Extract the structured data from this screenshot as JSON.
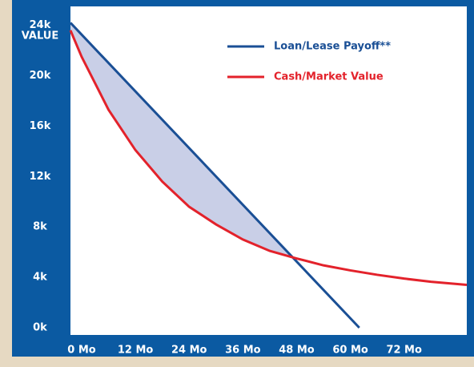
{
  "chart_data": {
    "type": "line",
    "y_label": "VALUE",
    "xlim": [
      -2.5,
      86
    ],
    "ylim": [
      0,
      25500
    ],
    "xticks": [
      {
        "value": 0,
        "label": "0 Mo"
      },
      {
        "value": 12,
        "label": "12 Mo"
      },
      {
        "value": 24,
        "label": "24 Mo"
      },
      {
        "value": 36,
        "label": "36 Mo"
      },
      {
        "value": 48,
        "label": "48 Mo"
      },
      {
        "value": 60,
        "label": "60 Mo"
      },
      {
        "value": 72,
        "label": "72 Mo"
      }
    ],
    "yticks": [
      {
        "value": 0,
        "label": "0k"
      },
      {
        "value": 4000,
        "label": "4k"
      },
      {
        "value": 8000,
        "label": "8k"
      },
      {
        "value": 12000,
        "label": "12k"
      },
      {
        "value": 16000,
        "label": "16k"
      },
      {
        "value": 20000,
        "label": "20k"
      },
      {
        "value": 24000,
        "label": "24k"
      }
    ],
    "series": [
      {
        "name": "Loan/Lease Payoff**",
        "color": "#1a4f95",
        "x": [
          -2.5,
          62
        ],
        "values": [
          24200,
          0
        ]
      },
      {
        "name": "Cash/Market Value",
        "color": "#e3222b",
        "x": [
          -2.5,
          0,
          6,
          12,
          18,
          24,
          30,
          36,
          42,
          48,
          54,
          60,
          66,
          72,
          78,
          86
        ],
        "values": [
          23600,
          21500,
          17300,
          14100,
          11600,
          9600,
          8200,
          7000,
          6100,
          5500,
          4950,
          4550,
          4200,
          3900,
          3650,
          3400
        ]
      }
    ]
  }
}
